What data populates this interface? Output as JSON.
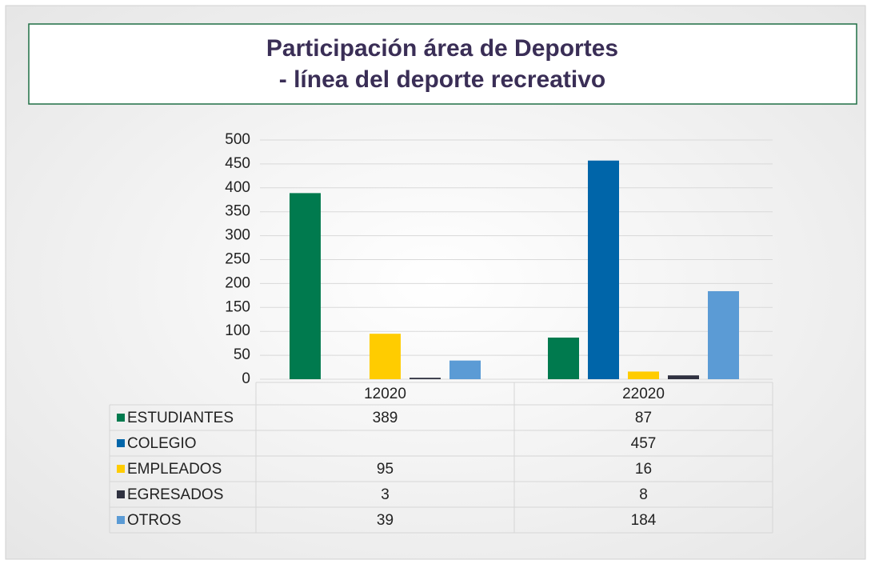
{
  "chart_data": {
    "type": "bar",
    "title": [
      "Participación área de Deportes",
      "- línea del deporte recreativo"
    ],
    "categories": [
      "12020",
      "22020"
    ],
    "series": [
      {
        "name": "ESTUDIANTES",
        "color": "#007a4e",
        "values": [
          389,
          87
        ]
      },
      {
        "name": "COLEGIO",
        "color": "#0065a9",
        "values": [
          null,
          457
        ]
      },
      {
        "name": "EMPLEADOS",
        "color": "#ffcc00",
        "values": [
          95,
          16
        ]
      },
      {
        "name": "EGRESADOS",
        "color": "#2f3140",
        "values": [
          3,
          8
        ]
      },
      {
        "name": "OTROS",
        "color": "#5b9bd5",
        "values": [
          39,
          184
        ]
      }
    ],
    "ylim": [
      0,
      500
    ],
    "yticks": [
      0,
      50,
      100,
      150,
      200,
      250,
      300,
      350,
      400,
      450,
      500
    ],
    "grid": true,
    "data_table": true
  }
}
